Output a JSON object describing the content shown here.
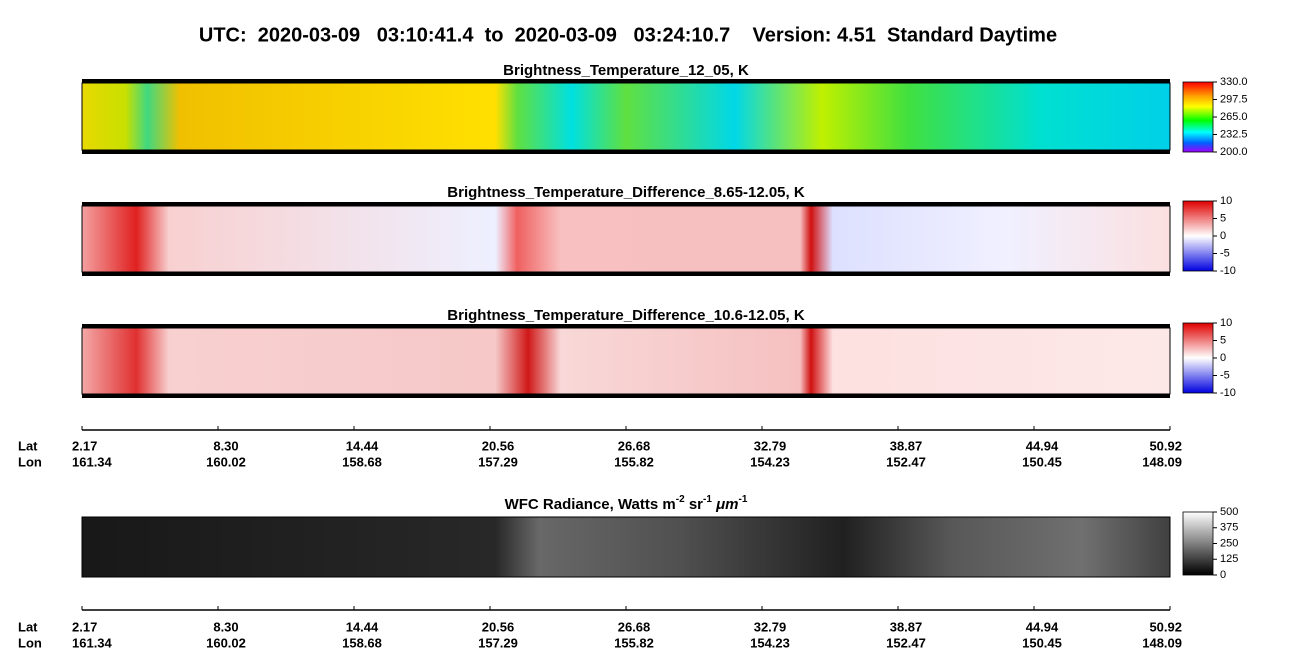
{
  "header": {
    "title": "UTC:  2020-03-09   03:10:41.4  to  2020-03-09   03:24:10.7    Version: 4.51  Standard Daytime"
  },
  "chart_data": [
    {
      "type": "image",
      "title": "Brightness_Temperature_12_05, K",
      "colorbar": {
        "colormap": "rainbow",
        "lim": [
          200,
          330
        ],
        "ticks": [
          {
            "value": 330,
            "label": "330.0"
          },
          {
            "value": 297.5,
            "label": "297.5"
          },
          {
            "value": 265,
            "label": "265.0"
          },
          {
            "value": 232.5,
            "label": "232.5"
          },
          {
            "value": 200,
            "label": "200.0"
          }
        ]
      }
    },
    {
      "type": "image",
      "title": "Brightness_Temperature_Difference_8.65-12.05, K",
      "colorbar": {
        "colormap": "bwr",
        "lim": [
          -10,
          10
        ],
        "ticks": [
          10,
          5,
          0,
          -5,
          -10
        ]
      }
    },
    {
      "type": "image",
      "title": "Brightness_Temperature_Difference_10.6-12.05, K",
      "colorbar": {
        "colormap": "bwr",
        "lim": [
          -10,
          10
        ],
        "ticks": [
          10,
          5,
          0,
          -5,
          -10
        ]
      }
    },
    {
      "type": "image",
      "title_parts": [
        "WFC Radiance, Watts m",
        "-2",
        " sr",
        "-1",
        " ",
        "μm",
        "-1"
      ],
      "colorbar": {
        "colormap": "gray",
        "lim": [
          0,
          500
        ],
        "ticks": [
          500,
          375,
          250,
          125,
          0
        ]
      }
    }
  ],
  "axis": {
    "row_labels": [
      "Lat",
      "Lon"
    ],
    "lat": [
      2.17,
      {
        "value": 8.3,
        "label": "8.30"
      },
      14.44,
      20.56,
      26.68,
      32.79,
      38.87,
      44.94,
      50.92
    ],
    "lon": [
      161.34,
      160.02,
      158.68,
      157.29,
      155.82,
      154.23,
      152.47,
      150.45,
      148.09
    ]
  }
}
